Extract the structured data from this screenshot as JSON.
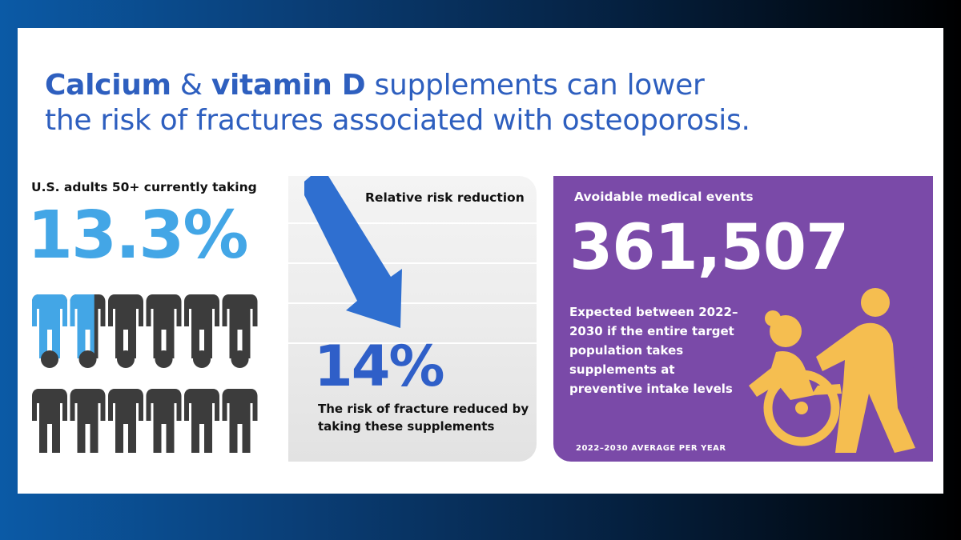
{
  "headline": {
    "line1_part1": "Calcium",
    "line1_part2": " & ",
    "line1_part3": "vitamin D",
    "line1_part4": " supplements can lower",
    "line2": "the risk of fractures associated with osteoporosis."
  },
  "adults": {
    "label": "U.S. adults 50+ currently taking",
    "percent": "13.3%",
    "share": 0.133,
    "icon_total": 12,
    "colors": {
      "highlight": "#43a6e6",
      "rest": "#3c3c3c"
    }
  },
  "risk": {
    "label": "Relative risk reduction",
    "percent": "14%",
    "description": "The risk of fracture reduced by taking these supplements",
    "arrow_color": "#2f6fd0"
  },
  "events": {
    "label": "Avoidable medical events",
    "number": "361,507",
    "description": "Expected between 2022–2030 if the entire target population takes supplements at preventive intake levels",
    "footnote": "2022–2030 AVERAGE PER YEAR",
    "panel_color": "#7a4aa8",
    "icon_color": "#f5be50",
    "icon": "wheelchair-caregiver-icon"
  }
}
